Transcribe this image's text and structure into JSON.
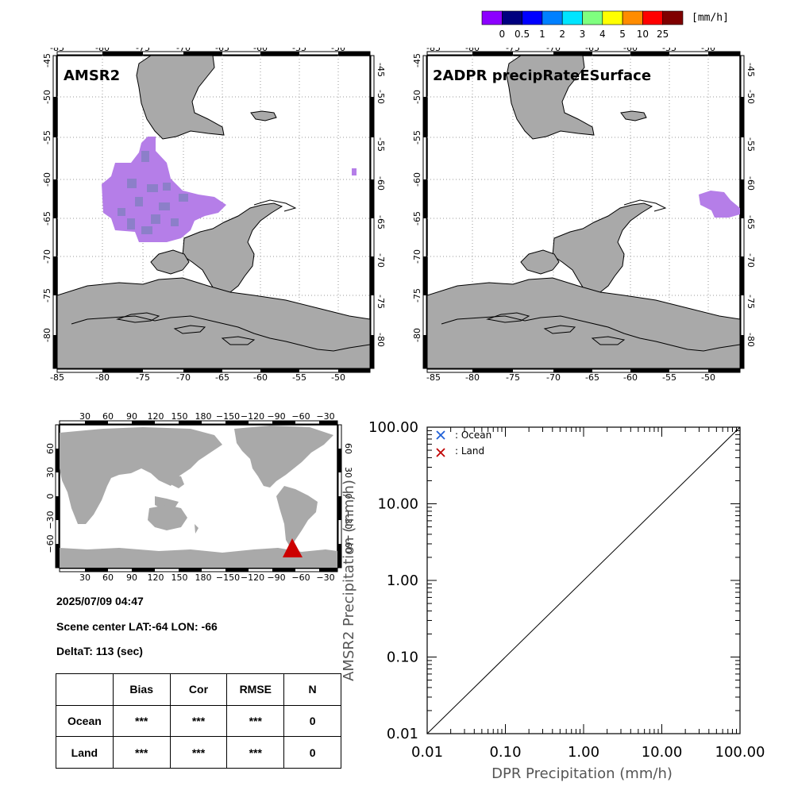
{
  "colorbar": {
    "colors": [
      "#8c00ff",
      "#00007f",
      "#0000ff",
      "#0080ff",
      "#00e5ff",
      "#7fff7f",
      "#ffff00",
      "#ff8c00",
      "#ff0000",
      "#7f0000"
    ],
    "labels": [
      "0",
      "0.5",
      "1",
      "2",
      "3",
      "4",
      "5",
      "10",
      "25"
    ],
    "unit": "[mm/h]"
  },
  "map_amsr2": {
    "title": "AMSR2",
    "lon_ticks": [
      "-85",
      "-80",
      "-75",
      "-70",
      "-65",
      "-60",
      "-55",
      "-50"
    ],
    "lat_ticks": [
      "-45",
      "-50",
      "-55",
      "-60",
      "-65",
      "-70",
      "-75",
      "-80"
    ]
  },
  "map_dpr": {
    "title": "2ADPR precipRateESurface",
    "lon_ticks": [
      "-85",
      "-80",
      "-75",
      "-70",
      "-65",
      "-60",
      "-55",
      "-50"
    ],
    "lat_ticks": [
      "-45",
      "-50",
      "-55",
      "-60",
      "-65",
      "-70",
      "-75",
      "-80"
    ]
  },
  "world_map": {
    "lon_ticks": [
      "30",
      "60",
      "90",
      "120",
      "150",
      "180",
      "−150",
      "−120",
      "−90",
      "−60",
      "−30"
    ],
    "lat_ticks": [
      "60",
      "30",
      "0",
      "−30",
      "−60"
    ],
    "marker_color": "#cc0000"
  },
  "info": {
    "datetime": "2025/07/09 04:47",
    "scene_center": "Scene center LAT:-64   LON: -66",
    "delta_t": "DeltaT:  113 (sec)"
  },
  "stats_table": {
    "headers": [
      "Bias",
      "Cor",
      "RMSE",
      "N"
    ],
    "rows": [
      {
        "label": "Ocean",
        "values": [
          "***",
          "***",
          "***",
          "0"
        ]
      },
      {
        "label": "Land",
        "values": [
          "***",
          "***",
          "***",
          "0"
        ]
      }
    ]
  },
  "scatter": {
    "xlabel": "DPR Precipitation (mm/h)",
    "ylabel": "AMSR2 Precipitation (mm/h)",
    "ticks": [
      "0.01",
      "0.10",
      "1.00",
      "10.00",
      "100.00"
    ],
    "legend": [
      {
        "label": ": Ocean",
        "color": "#1f5fd6"
      },
      {
        "label": ": Land",
        "color": "#c00000"
      }
    ]
  },
  "chart_data": {
    "type": "scatter",
    "x_scale": "log",
    "y_scale": "log",
    "xlim": [
      0.01,
      100
    ],
    "ylim": [
      0.01,
      100
    ],
    "xlabel": "DPR Precipitation (mm/h)",
    "ylabel": "AMSR2 Precipitation (mm/h)",
    "series": [
      {
        "name": ": Ocean",
        "x": [],
        "y": []
      },
      {
        "name": ": Land",
        "x": [],
        "y": []
      }
    ],
    "reference_line": "1:1"
  }
}
